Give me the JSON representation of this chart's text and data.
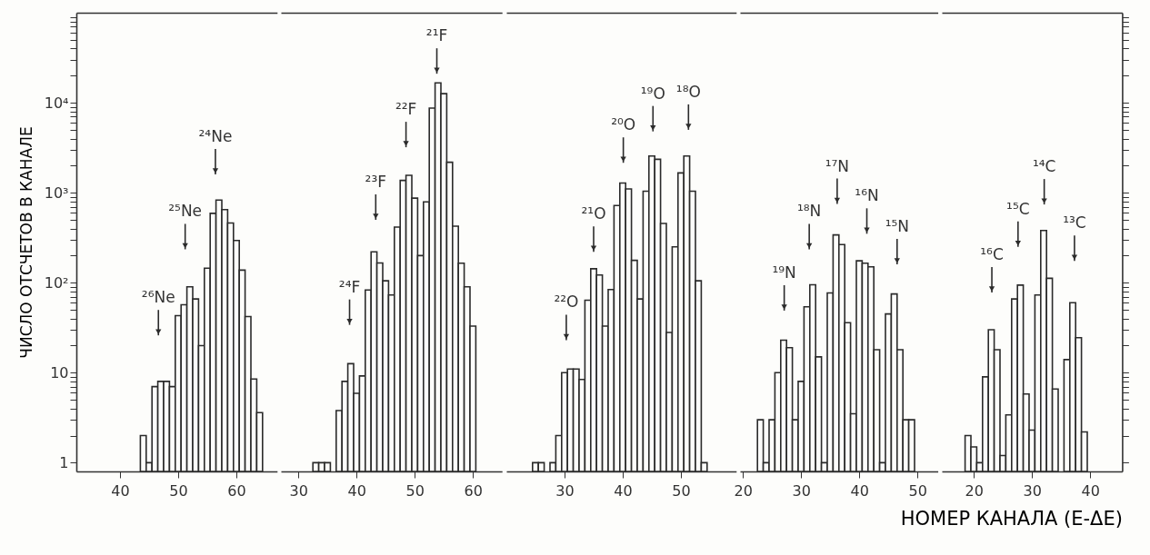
{
  "chart_data": [
    {
      "type": "histogram",
      "ylabel": "ЧИСЛО ОТСЧЕТОВ В КАНАЛЕ",
      "log": true,
      "color": "#2b2b2b",
      "xlim": [
        32.5,
        67
      ],
      "xticks": [
        40,
        50,
        60
      ],
      "ylim": [
        0.8,
        100000
      ],
      "yticks": [
        1,
        {
          "value": 2,
          "label": null
        },
        {
          "value": 3,
          "label": null
        },
        {
          "value": 4,
          "label": null
        },
        {
          "value": 5,
          "label": null
        },
        {
          "value": 6,
          "label": null
        },
        {
          "value": 7,
          "label": null
        },
        {
          "value": 8,
          "label": null
        },
        {
          "value": 9,
          "label": null
        },
        10,
        {
          "value": 20,
          "label": null
        },
        {
          "value": 30,
          "label": null
        },
        {
          "value": 40,
          "label": null
        },
        {
          "value": 50,
          "label": null
        },
        {
          "value": 60,
          "label": null
        },
        {
          "value": 70,
          "label": null
        },
        {
          "value": 80,
          "label": null
        },
        {
          "value": 90,
          "label": null
        },
        {
          "value": 100,
          "label": "10²"
        },
        {
          "value": 200,
          "label": null
        },
        {
          "value": 300,
          "label": null
        },
        {
          "value": 400,
          "label": null
        },
        {
          "value": 500,
          "label": null
        },
        {
          "value": 600,
          "label": null
        },
        {
          "value": 700,
          "label": null
        },
        {
          "value": 800,
          "label": null
        },
        {
          "value": 900,
          "label": null
        },
        {
          "value": 1000,
          "label": "10³"
        },
        {
          "value": 2000,
          "label": null
        },
        {
          "value": 3000,
          "label": null
        },
        {
          "value": 4000,
          "label": null
        },
        {
          "value": 5000,
          "label": null
        },
        {
          "value": 6000,
          "label": null
        },
        {
          "value": 7000,
          "label": null
        },
        {
          "value": 8000,
          "label": null
        },
        {
          "value": 9000,
          "label": null
        },
        {
          "value": 10000,
          "label": "10⁴"
        },
        {
          "value": 20000,
          "label": null
        },
        {
          "value": 30000,
          "label": null
        },
        {
          "value": 40000,
          "label": null
        },
        {
          "value": 50000,
          "label": null
        },
        {
          "value": 60000,
          "label": null
        },
        {
          "value": 70000,
          "label": null
        },
        {
          "value": 80000,
          "label": null
        },
        {
          "value": 90000,
          "label": null
        }
      ],
      "bins": [
        43.5,
        44.5,
        45.5,
        46.5,
        47.5,
        48.5,
        49.5,
        50.5,
        51.5,
        52.5,
        53.5,
        54.5,
        55.5,
        56.5,
        57.5,
        58.5,
        59.5,
        60.5,
        61.5,
        62.5,
        63.5,
        64.5
      ],
      "values": [
        2,
        1,
        7,
        8,
        8,
        7,
        43,
        57,
        90,
        66,
        20,
        145,
        590,
        830,
        650,
        460,
        295,
        138,
        42,
        8.5,
        3.6
      ],
      "annotations": [
        "²⁶Ne",
        "²⁵Ne",
        "²⁴Ne"
      ]
    },
    {
      "type": "histogram",
      "log": true,
      "color": "#2b2b2b",
      "tick_labels": "x",
      "xlim": [
        27,
        65
      ],
      "xticks": [
        30,
        40,
        50,
        60
      ],
      "ylim": [
        0.8,
        100000
      ],
      "bins": [
        32.5,
        33.5,
        34.5,
        35.5,
        36.5,
        37.5,
        38.5,
        39.5,
        40.5,
        41.5,
        42.5,
        43.5,
        44.5,
        45.5,
        46.5,
        47.5,
        48.5,
        49.5,
        50.5,
        51.5,
        52.5,
        53.5,
        54.5,
        55.5,
        56.5,
        57.5,
        58.5,
        59.5,
        60.5
      ],
      "values": [
        1,
        1,
        1,
        null,
        3.8,
        8,
        12.6,
        5.9,
        9.2,
        83,
        220,
        166,
        105,
        73,
        415,
        1370,
        1560,
        870,
        200,
        790,
        8700,
        16600,
        12600,
        2180,
        425,
        165,
        90,
        33
      ],
      "annotations": [
        "²⁴F",
        "²³F",
        "²²F",
        "²¹F"
      ]
    },
    {
      "type": "histogram",
      "log": true,
      "color": "#2b2b2b",
      "tick_labels": "x",
      "xlim": [
        20,
        59.5
      ],
      "xticks": [
        30,
        40,
        50
      ],
      "ylim": [
        0.8,
        100000
      ],
      "bins": [
        24.5,
        25.5,
        26.5,
        27.5,
        28.5,
        29.5,
        30.5,
        31.5,
        32.5,
        33.5,
        34.5,
        35.5,
        36.5,
        37.5,
        38.5,
        39.5,
        40.5,
        41.5,
        42.5,
        43.5,
        44.5,
        45.5,
        46.5,
        47.5,
        48.5,
        49.5,
        50.5,
        51.5,
        52.5,
        53.5,
        54.5
      ],
      "values": [
        1,
        1,
        null,
        1,
        2,
        10,
        11,
        11,
        8.4,
        64,
        143,
        122,
        33,
        84,
        720,
        1280,
        1100,
        177,
        66,
        1040,
        2560,
        2350,
        455,
        28,
        250,
        1660,
        2560,
        1040,
        105,
        1
      ],
      "annotations": [
        "²²O",
        "²¹O",
        "²⁰O",
        "¹⁹O",
        "¹⁸O"
      ]
    },
    {
      "type": "histogram",
      "log": true,
      "color": "#2b2b2b",
      "tick_labels": "x",
      "xlim": [
        19.5,
        53.5
      ],
      "xticks": [
        20,
        30,
        40,
        50
      ],
      "ylim": [
        0.8,
        100000
      ],
      "bins": [
        22.5,
        23.5,
        24.5,
        25.5,
        26.5,
        27.5,
        28.5,
        29.5,
        30.5,
        31.5,
        32.5,
        33.5,
        34.5,
        35.5,
        36.5,
        37.5,
        38.5,
        39.5,
        40.5,
        41.5,
        42.5,
        43.5,
        44.5,
        45.5,
        46.5,
        47.5,
        48.5,
        49.5
      ],
      "values": [
        3,
        1,
        3,
        10,
        23,
        19,
        3,
        8,
        54,
        95,
        15,
        1,
        77,
        340,
        265,
        36,
        3.5,
        175,
        165,
        150,
        18,
        1,
        45,
        75,
        18,
        3,
        3
      ],
      "annotations": [
        "¹⁹N",
        "¹⁸N",
        "¹⁷N",
        "¹⁶N",
        "¹⁵N"
      ]
    },
    {
      "type": "histogram",
      "xlabel": "НОМЕР  КАНАЛА  (E-ΔE)",
      "log": true,
      "color": "#2b2b2b",
      "tick_labels": "x",
      "xlim": [
        14.5,
        45.5
      ],
      "xticks": [
        20,
        30,
        40
      ],
      "ylim": [
        0.8,
        100000
      ],
      "yticks": [
        {
          "value": 1,
          "label": null
        },
        {
          "value": 2,
          "label": null
        },
        {
          "value": 3,
          "label": null
        },
        {
          "value": 4,
          "label": null
        },
        {
          "value": 5,
          "label": null
        },
        {
          "value": 6,
          "label": null
        },
        {
          "value": 7,
          "label": null
        },
        {
          "value": 8,
          "label": null
        },
        {
          "value": 9,
          "label": null
        },
        {
          "value": 10,
          "label": null
        },
        {
          "value": 20,
          "label": null
        },
        {
          "value": 30,
          "label": null
        },
        {
          "value": 40,
          "label": null
        },
        {
          "value": 50,
          "label": null
        },
        {
          "value": 60,
          "label": null
        },
        {
          "value": 70,
          "label": null
        },
        {
          "value": 80,
          "label": null
        },
        {
          "value": 90,
          "label": null
        },
        {
          "value": 100,
          "label": null
        },
        {
          "value": 200,
          "label": null
        },
        {
          "value": 300,
          "label": null
        },
        {
          "value": 400,
          "label": null
        },
        {
          "value": 500,
          "label": null
        },
        {
          "value": 600,
          "label": null
        },
        {
          "value": 700,
          "label": null
        },
        {
          "value": 800,
          "label": null
        },
        {
          "value": 900,
          "label": null
        },
        {
          "value": 1000,
          "label": null
        },
        {
          "value": 2000,
          "label": null
        },
        {
          "value": 3000,
          "label": null
        },
        {
          "value": 4000,
          "label": null
        },
        {
          "value": 5000,
          "label": null
        },
        {
          "value": 6000,
          "label": null
        },
        {
          "value": 7000,
          "label": null
        },
        {
          "value": 8000,
          "label": null
        },
        {
          "value": 9000,
          "label": null
        },
        {
          "value": 10000,
          "label": null
        },
        {
          "value": 20000,
          "label": null
        },
        {
          "value": 30000,
          "label": null
        },
        {
          "value": 40000,
          "label": null
        },
        {
          "value": 50000,
          "label": null
        },
        {
          "value": 60000,
          "label": null
        },
        {
          "value": 70000,
          "label": null
        },
        {
          "value": 80000,
          "label": null
        },
        {
          "value": 90000,
          "label": null
        }
      ],
      "bins": [
        18.5,
        19.5,
        20.5,
        21.5,
        22.5,
        23.5,
        24.5,
        25.5,
        26.5,
        27.5,
        28.5,
        29.5,
        30.5,
        31.5,
        32.5,
        33.5,
        34.5,
        35.5,
        36.5,
        37.5,
        38.5,
        39.5
      ],
      "values": [
        2,
        1.5,
        1,
        9,
        30,
        18,
        1.2,
        3.4,
        66,
        94,
        5.8,
        2.3,
        73,
        380,
        112,
        6.6,
        null,
        14,
        60,
        24.5,
        2.2
      ],
      "annotations": [
        "¹⁶C",
        "¹⁵C",
        "¹⁴C",
        "¹³C"
      ]
    }
  ]
}
